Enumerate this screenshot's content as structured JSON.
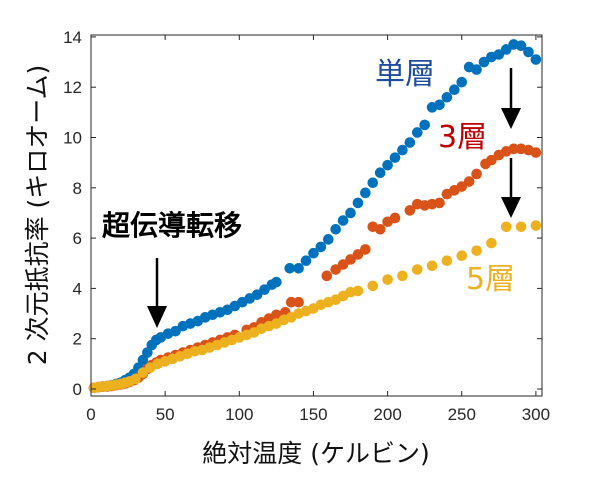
{
  "chart_data": {
    "type": "scatter",
    "title": "",
    "xlabel": "絶対温度 (ケルビン)",
    "ylabel": "2 次元抵抗率 (キロオーム)",
    "xlim": [
      0,
      304
    ],
    "ylim": [
      -0.3,
      14.1
    ],
    "xticks": [
      0,
      50,
      100,
      150,
      200,
      250,
      300
    ],
    "yticks": [
      0,
      2,
      4,
      6,
      8,
      10,
      12,
      14
    ],
    "grid": false,
    "legend": "none",
    "series": [
      {
        "name": "単層",
        "color": "#0072BD",
        "label_color": "#1F4E9C",
        "x": [
          2,
          5,
          8,
          11,
          14,
          17,
          20,
          23,
          26,
          29,
          32,
          35,
          38,
          41,
          44,
          47,
          52,
          57,
          62,
          67,
          72,
          77,
          82,
          87,
          92,
          97,
          102,
          107,
          112,
          117,
          122,
          125,
          134,
          140,
          145,
          150,
          155,
          160,
          165,
          170,
          175,
          180,
          185,
          190,
          195,
          200,
          205,
          210,
          215,
          220,
          225,
          230,
          235,
          240,
          245,
          250,
          255,
          260,
          265,
          270,
          275,
          280,
          285,
          290,
          295,
          300
        ],
        "y": [
          0.05,
          0.08,
          0.1,
          0.12,
          0.15,
          0.2,
          0.25,
          0.35,
          0.45,
          0.6,
          0.85,
          1.15,
          1.45,
          1.75,
          1.95,
          2.05,
          2.2,
          2.3,
          2.5,
          2.6,
          2.7,
          2.85,
          2.95,
          3.05,
          3.15,
          3.3,
          3.45,
          3.6,
          3.75,
          3.95,
          4.15,
          4.25,
          4.8,
          4.8,
          5.1,
          5.4,
          5.65,
          5.95,
          6.35,
          6.7,
          7.0,
          7.4,
          7.8,
          8.2,
          8.6,
          8.9,
          9.2,
          9.5,
          9.8,
          10.2,
          10.5,
          11.2,
          11.3,
          11.6,
          11.9,
          12.2,
          12.8,
          12.7,
          13.0,
          13.2,
          13.3,
          13.5,
          13.7,
          13.65,
          13.4,
          13.1
        ]
      },
      {
        "name": "3層",
        "color": "#D95319",
        "label_color": "#C00000",
        "x": [
          2,
          5,
          8,
          11,
          14,
          17,
          20,
          23,
          26,
          29,
          32,
          35,
          38,
          41,
          44,
          47,
          52,
          57,
          62,
          67,
          72,
          77,
          82,
          87,
          92,
          97,
          105,
          110,
          115,
          120,
          125,
          131,
          135,
          140,
          159,
          165,
          170,
          175,
          180,
          185,
          190,
          195,
          200,
          205,
          215,
          220,
          225,
          230,
          235,
          240,
          245,
          250,
          255,
          260,
          266,
          270,
          275,
          280,
          285,
          290,
          295,
          300
        ],
        "y": [
          0.05,
          0.07,
          0.09,
          0.1,
          0.12,
          0.15,
          0.18,
          0.22,
          0.28,
          0.35,
          0.45,
          0.6,
          0.8,
          0.95,
          1.05,
          1.15,
          1.25,
          1.35,
          1.45,
          1.55,
          1.65,
          1.75,
          1.85,
          1.95,
          2.05,
          2.15,
          2.35,
          2.45,
          2.65,
          2.8,
          2.95,
          3.05,
          3.45,
          3.45,
          4.5,
          4.75,
          4.95,
          5.15,
          5.35,
          5.55,
          6.45,
          6.35,
          6.65,
          6.8,
          7.1,
          7.35,
          7.3,
          7.35,
          7.4,
          7.75,
          7.9,
          8.05,
          8.25,
          8.55,
          8.95,
          9.1,
          9.3,
          9.45,
          9.55,
          9.55,
          9.5,
          9.4
        ]
      },
      {
        "name": "5層",
        "color": "#EDB120",
        "label_color": "#EDB120",
        "x": [
          2,
          5,
          8,
          11,
          14,
          17,
          20,
          23,
          26,
          30,
          35,
          40,
          45,
          50,
          55,
          60,
          65,
          70,
          75,
          80,
          85,
          90,
          95,
          100,
          105,
          110,
          115,
          120,
          125,
          130,
          135,
          140,
          145,
          150,
          155,
          160,
          165,
          170,
          175,
          180,
          190,
          200,
          210,
          220,
          230,
          240,
          250,
          260,
          270,
          280,
          290,
          300
        ],
        "y": [
          0.05,
          0.08,
          0.1,
          0.12,
          0.14,
          0.17,
          0.2,
          0.25,
          0.3,
          0.4,
          0.65,
          0.85,
          1.0,
          1.1,
          1.2,
          1.3,
          1.4,
          1.5,
          1.55,
          1.65,
          1.75,
          1.85,
          1.95,
          2.05,
          2.15,
          2.25,
          2.4,
          2.5,
          2.6,
          2.75,
          2.85,
          3.0,
          3.1,
          3.2,
          3.35,
          3.45,
          3.55,
          3.7,
          3.85,
          3.9,
          4.1,
          4.35,
          4.5,
          4.75,
          4.9,
          5.1,
          5.3,
          5.5,
          5.8,
          6.45,
          6.45,
          6.5
        ]
      }
    ],
    "annotations": [
      {
        "text": "超伝導転移",
        "arrow": "down",
        "target_x": 45
      },
      {
        "text": "",
        "arrow": "down",
        "from": "単層",
        "to": "3層",
        "target_x": 285
      },
      {
        "text": "",
        "arrow": "down",
        "from": "3層",
        "to": "5層",
        "target_x": 285
      }
    ]
  }
}
